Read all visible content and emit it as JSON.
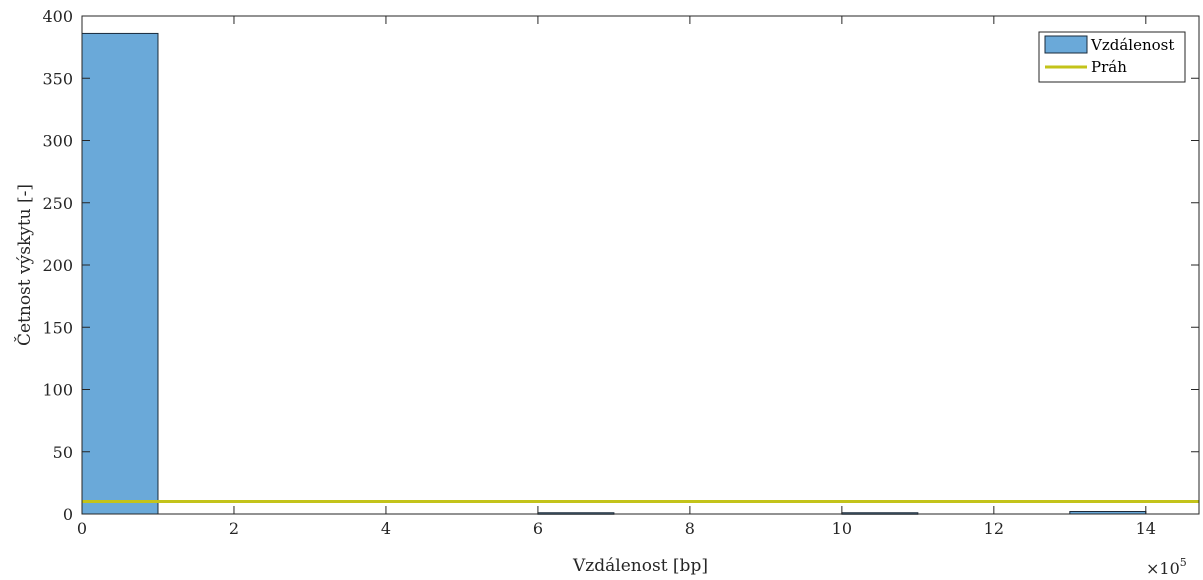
{
  "chart_data": {
    "type": "bar",
    "title": "",
    "xlabel": "Vzdálenost [bp]",
    "ylabel": "Četnost výskytu [-]",
    "xlim": [
      0,
      1470000
    ],
    "ylim": [
      0,
      400
    ],
    "x_exponent_label": "×10",
    "x_exponent_power": "5",
    "xticks": [
      0,
      200000,
      400000,
      600000,
      800000,
      1000000,
      1200000,
      1400000
    ],
    "xtick_labels": [
      "0",
      "2",
      "4",
      "6",
      "8",
      "10",
      "12",
      "14"
    ],
    "yticks": [
      0,
      50,
      100,
      150,
      200,
      250,
      300,
      350,
      400
    ],
    "ytick_labels": [
      "0",
      "50",
      "100",
      "150",
      "200",
      "250",
      "300",
      "350",
      "400"
    ],
    "bins": [
      {
        "x_start": 0,
        "x_end": 100000,
        "count": 386
      },
      {
        "x_start": 100000,
        "x_end": 200000,
        "count": 0
      },
      {
        "x_start": 200000,
        "x_end": 300000,
        "count": 0
      },
      {
        "x_start": 300000,
        "x_end": 400000,
        "count": 0
      },
      {
        "x_start": 400000,
        "x_end": 500000,
        "count": 0
      },
      {
        "x_start": 500000,
        "x_end": 600000,
        "count": 0
      },
      {
        "x_start": 600000,
        "x_end": 700000,
        "count": 1
      },
      {
        "x_start": 700000,
        "x_end": 800000,
        "count": 0
      },
      {
        "x_start": 800000,
        "x_end": 900000,
        "count": 0
      },
      {
        "x_start": 900000,
        "x_end": 1000000,
        "count": 0
      },
      {
        "x_start": 1000000,
        "x_end": 1100000,
        "count": 1
      },
      {
        "x_start": 1100000,
        "x_end": 1200000,
        "count": 0
      },
      {
        "x_start": 1200000,
        "x_end": 1300000,
        "count": 0
      },
      {
        "x_start": 1300000,
        "x_end": 1400000,
        "count": 2
      }
    ],
    "threshold": 10,
    "grid": false,
    "legend": {
      "position": "top-right",
      "entries": [
        {
          "label": "Vzdálenost",
          "kind": "bar"
        },
        {
          "label": "Práh",
          "kind": "line"
        }
      ]
    },
    "colors": {
      "bar_fill": "#6aa9d9",
      "bar_stroke": "#1a2a3a",
      "threshold_line": "#c3c31a",
      "axis": "#262626"
    }
  }
}
